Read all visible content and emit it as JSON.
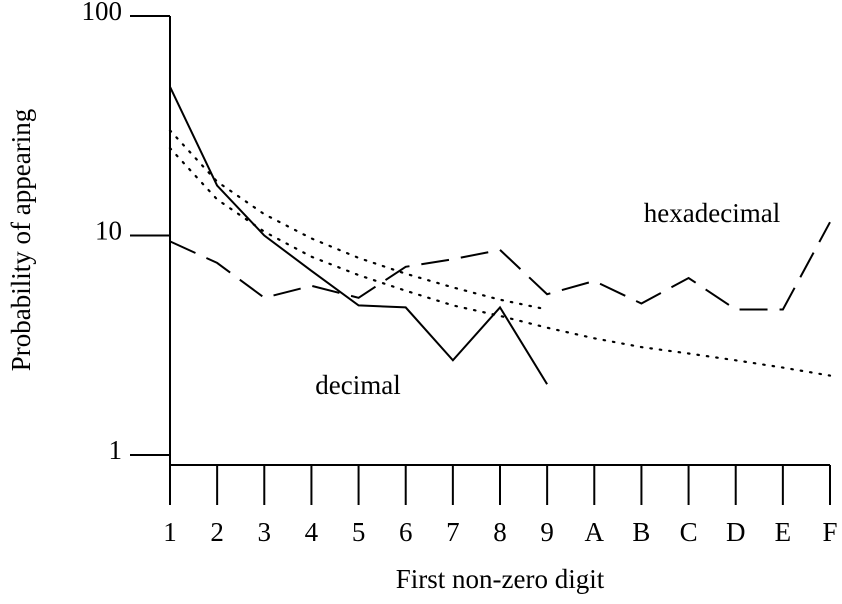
{
  "chart_data": {
    "type": "line",
    "xlabel": "First non-zero digit",
    "ylabel": "Probability of appearing",
    "categories": [
      "1",
      "2",
      "3",
      "4",
      "5",
      "6",
      "7",
      "8",
      "9",
      "A",
      "B",
      "C",
      "D",
      "E",
      "F"
    ],
    "ylim": [
      0.9,
      100
    ],
    "yticks": [
      1,
      10,
      100
    ],
    "log_y": true,
    "series": [
      {
        "name": "decimal",
        "color": "#000000",
        "style": "solid",
        "values": [
          47.6,
          16.9,
          10,
          6.9,
          4.8,
          4.7,
          2.7,
          4.7,
          2.1,
          null,
          null,
          null,
          null,
          null,
          null
        ]
      },
      {
        "name": "hexadecimal",
        "color": "#000000",
        "style": "dashed",
        "values": [
          9.4,
          7.5,
          5.2,
          5.9,
          5.2,
          7.2,
          7.8,
          8.6,
          5.4,
          6.2,
          4.9,
          6.4,
          4.6,
          4.6,
          11.5
        ]
      },
      {
        "color": "#000000",
        "style": "dotted",
        "values": [
          30.1,
          17.6,
          12.5,
          9.7,
          7.9,
          6.7,
          5.8,
          5.1,
          4.6,
          null,
          null,
          null,
          null,
          null,
          null
        ]
      },
      {
        "color": "#000000",
        "style": "dotted",
        "values": [
          25,
          14.6,
          10.4,
          8.0,
          6.6,
          5.6,
          4.8,
          4.3,
          3.8,
          3.4,
          3.1,
          2.9,
          2.7,
          2.5,
          2.3
        ]
      }
    ]
  }
}
